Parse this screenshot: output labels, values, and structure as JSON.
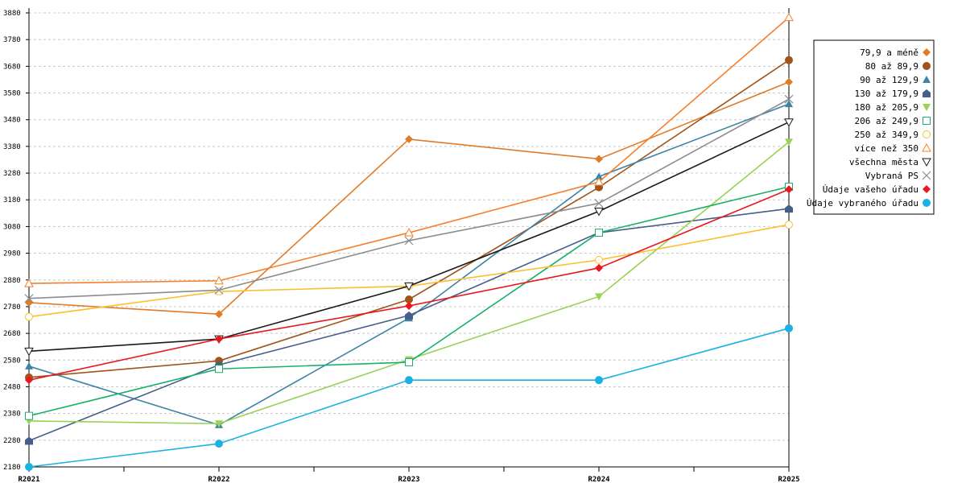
{
  "chart_data": {
    "type": "line",
    "title": "",
    "xlabel": "",
    "ylabel": "",
    "categories": [
      "R2021",
      "R2022",
      "R2023",
      "R2024",
      "R2025"
    ],
    "ylim": [
      2180,
      3880
    ],
    "y_ticks": [
      2180,
      2280,
      2380,
      2480,
      2580,
      2680,
      2780,
      2880,
      2980,
      3080,
      3180,
      3280,
      3380,
      3480,
      3580,
      3680,
      3780,
      3880
    ],
    "grid": "horizontal dashed",
    "legend_position": "right",
    "series": [
      {
        "name": "79,9 a méně",
        "color": "#e07b27",
        "marker": "diamond",
        "values": [
          2795,
          2752,
          3407,
          3333,
          3621
        ]
      },
      {
        "name": "80 až 89,9",
        "color": "#a0541b",
        "marker": "circle",
        "values": [
          2515,
          2577,
          2807,
          3227,
          3703
        ]
      },
      {
        "name": "90 až 129,9",
        "color": "#3b84a3",
        "marker": "triangle-up",
        "values": [
          2557,
          2337,
          2737,
          3267,
          3539
        ]
      },
      {
        "name": "130 až 179,9",
        "color": "#445f8a",
        "marker": "house",
        "values": [
          2278,
          2562,
          2747,
          3057,
          3147
        ]
      },
      {
        "name": "180 až 205,9",
        "color": "#99d254",
        "marker": "triangle-down",
        "values": [
          2352,
          2342,
          2582,
          2818,
          3397
        ]
      },
      {
        "name": "206 až 249,9",
        "color": "#1bb06a",
        "marker": "square",
        "values": [
          2371,
          2547,
          2572,
          3057,
          3229
        ]
      },
      {
        "name": "250 až 349,9",
        "color": "#fbc02d",
        "marker": "circle-open",
        "values": [
          2742,
          2837,
          2857,
          2955,
          3087
        ]
      },
      {
        "name": "více než 350",
        "color": "#f57f2c",
        "marker": "triangle-open",
        "values": [
          2867,
          2877,
          3057,
          3247,
          3863
        ]
      },
      {
        "name": "všechna města",
        "color": "#1a1a1a",
        "marker": "triangle-down-open",
        "values": [
          2613,
          2659,
          2857,
          3137,
          3471
        ]
      },
      {
        "name": "Vybraná PS",
        "color": "#8c8c8c",
        "marker": "x",
        "values": [
          2811,
          2842,
          3027,
          3167,
          3557
        ]
      },
      {
        "name": "Údaje vašeho úřadu",
        "color": "#e8181e",
        "marker": "diamond",
        "values": [
          2505,
          2659,
          2783,
          2925,
          3219
        ]
      },
      {
        "name": "Údaje vybraného úřadu",
        "color": "#1ab2e3",
        "marker": "circle",
        "values": [
          2180,
          2267,
          2505,
          2505,
          2699
        ]
      }
    ]
  }
}
